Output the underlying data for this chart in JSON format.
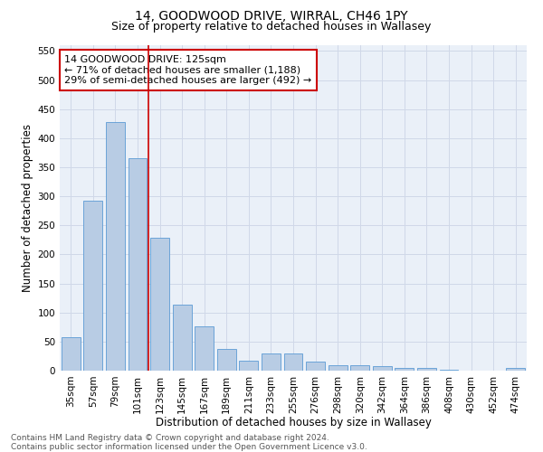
{
  "title": "14, GOODWOOD DRIVE, WIRRAL, CH46 1PY",
  "subtitle": "Size of property relative to detached houses in Wallasey",
  "xlabel": "Distribution of detached houses by size in Wallasey",
  "ylabel": "Number of detached properties",
  "categories": [
    "35sqm",
    "57sqm",
    "79sqm",
    "101sqm",
    "123sqm",
    "145sqm",
    "167sqm",
    "189sqm",
    "211sqm",
    "233sqm",
    "255sqm",
    "276sqm",
    "298sqm",
    "320sqm",
    "342sqm",
    "364sqm",
    "386sqm",
    "408sqm",
    "430sqm",
    "452sqm",
    "474sqm"
  ],
  "values": [
    57,
    293,
    428,
    365,
    228,
    113,
    76,
    37,
    17,
    29,
    29,
    16,
    10,
    10,
    8,
    4,
    4,
    1,
    0,
    0,
    5
  ],
  "bar_color": "#b8cce4",
  "bar_edge_color": "#5b9bd5",
  "vline_x_index": 4,
  "annotation_text": "14 GOODWOOD DRIVE: 125sqm\n← 71% of detached houses are smaller (1,188)\n29% of semi-detached houses are larger (492) →",
  "annotation_box_color": "#ffffff",
  "annotation_box_edge": "#cc0000",
  "vline_color": "#cc0000",
  "ylim": [
    0,
    560
  ],
  "yticks": [
    0,
    50,
    100,
    150,
    200,
    250,
    300,
    350,
    400,
    450,
    500,
    550
  ],
  "grid_color": "#d0d8e8",
  "bg_color": "#eaf0f8",
  "footnote": "Contains HM Land Registry data © Crown copyright and database right 2024.\nContains public sector information licensed under the Open Government Licence v3.0.",
  "title_fontsize": 10,
  "subtitle_fontsize": 9,
  "xlabel_fontsize": 8.5,
  "ylabel_fontsize": 8.5,
  "tick_fontsize": 7.5,
  "annot_fontsize": 8,
  "footnote_fontsize": 6.5
}
